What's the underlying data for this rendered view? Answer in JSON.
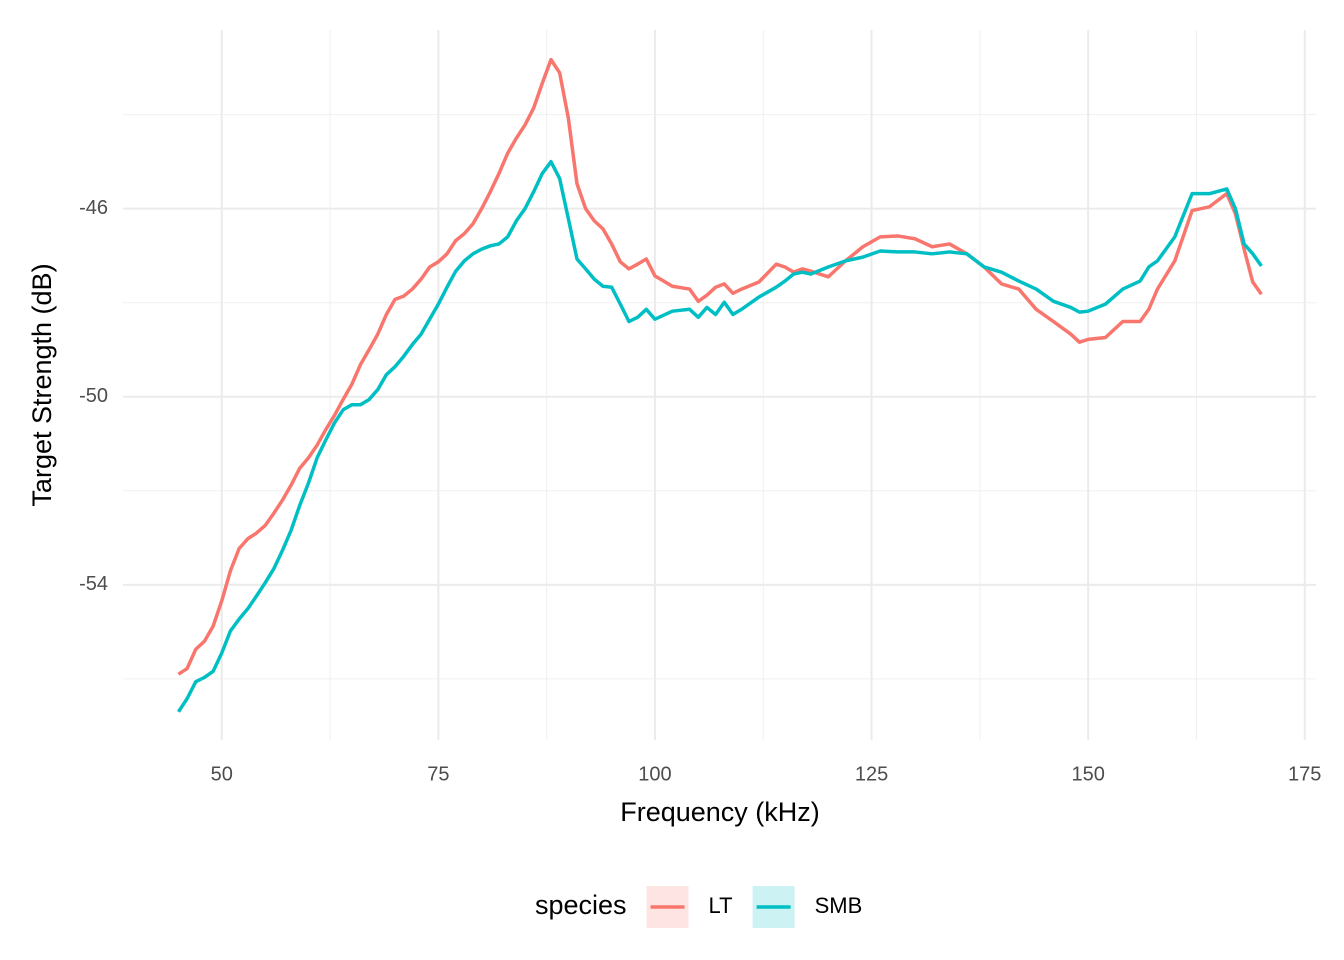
{
  "chart_data": {
    "type": "line",
    "x_label": "Frequency (kHz)",
    "y_label": "Target Strength (dB)",
    "x": [
      45,
      46,
      47,
      48,
      49,
      50,
      51,
      52,
      53,
      54,
      55,
      56,
      57,
      58,
      59,
      60,
      61,
      62,
      63,
      64,
      65,
      66,
      67,
      68,
      69,
      70,
      71,
      72,
      73,
      74,
      75,
      76,
      77,
      78,
      79,
      80,
      81,
      82,
      83,
      84,
      85,
      86,
      87,
      88,
      89,
      90,
      91,
      92,
      93,
      94,
      95,
      96,
      97,
      98,
      99,
      100,
      102,
      104,
      105,
      106,
      107,
      108,
      109,
      110,
      112,
      114,
      115,
      116,
      117,
      118,
      120,
      122,
      124,
      126,
      128,
      130,
      132,
      134,
      136,
      138,
      140,
      142,
      144,
      146,
      148,
      149,
      150,
      152,
      154,
      156,
      157,
      158,
      160,
      162,
      164,
      166,
      167,
      168,
      169,
      170
    ],
    "series": [
      {
        "name": "LT",
        "color": "#F8766D",
        "values": [
          -55.9,
          -55.78,
          -55.37,
          -55.2,
          -54.88,
          -54.34,
          -53.7,
          -53.23,
          -53.02,
          -52.9,
          -52.74,
          -52.48,
          -52.2,
          -51.88,
          -51.52,
          -51.3,
          -51.03,
          -50.7,
          -50.4,
          -50.06,
          -49.74,
          -49.32,
          -49.0,
          -48.67,
          -48.25,
          -47.93,
          -47.86,
          -47.71,
          -47.5,
          -47.24,
          -47.13,
          -46.96,
          -46.68,
          -46.53,
          -46.32,
          -46.0,
          -45.64,
          -45.25,
          -44.82,
          -44.5,
          -44.22,
          -43.86,
          -43.33,
          -42.83,
          -43.11,
          -44.07,
          -45.47,
          -46.0,
          -46.26,
          -46.43,
          -46.75,
          -47.13,
          -47.28,
          -47.18,
          -47.07,
          -47.43,
          -47.65,
          -47.71,
          -47.97,
          -47.84,
          -47.67,
          -47.6,
          -47.8,
          -47.71,
          -47.56,
          -47.18,
          -47.24,
          -47.35,
          -47.28,
          -47.33,
          -47.45,
          -47.11,
          -46.81,
          -46.6,
          -46.58,
          -46.64,
          -46.81,
          -46.75,
          -46.96,
          -47.24,
          -47.6,
          -47.71,
          -48.14,
          -48.4,
          -48.67,
          -48.84,
          -48.78,
          -48.74,
          -48.4,
          -48.4,
          -48.14,
          -47.71,
          -47.11,
          -46.04,
          -45.96,
          -45.68,
          -46.11,
          -46.86,
          -47.56,
          -47.82
        ]
      },
      {
        "name": "SMB",
        "color": "#00BFC4",
        "values": [
          -56.7,
          -56.42,
          -56.06,
          -55.97,
          -55.84,
          -55.45,
          -54.98,
          -54.73,
          -54.51,
          -54.24,
          -53.96,
          -53.66,
          -53.27,
          -52.84,
          -52.31,
          -51.84,
          -51.3,
          -50.92,
          -50.56,
          -50.28,
          -50.17,
          -50.17,
          -50.06,
          -49.85,
          -49.53,
          -49.36,
          -49.14,
          -48.89,
          -48.67,
          -48.35,
          -48.03,
          -47.67,
          -47.33,
          -47.11,
          -46.96,
          -46.86,
          -46.79,
          -46.75,
          -46.6,
          -46.26,
          -46.0,
          -45.64,
          -45.25,
          -45.0,
          -45.36,
          -46.21,
          -47.07,
          -47.28,
          -47.5,
          -47.65,
          -47.67,
          -48.03,
          -48.4,
          -48.31,
          -48.14,
          -48.35,
          -48.18,
          -48.14,
          -48.31,
          -48.1,
          -48.25,
          -47.99,
          -48.25,
          -48.14,
          -47.88,
          -47.67,
          -47.54,
          -47.39,
          -47.35,
          -47.39,
          -47.24,
          -47.11,
          -47.03,
          -46.9,
          -46.92,
          -46.92,
          -46.96,
          -46.92,
          -46.96,
          -47.24,
          -47.35,
          -47.54,
          -47.71,
          -47.97,
          -48.1,
          -48.2,
          -48.18,
          -48.03,
          -47.71,
          -47.54,
          -47.24,
          -47.11,
          -46.6,
          -45.68,
          -45.68,
          -45.58,
          -46.0,
          -46.75,
          -46.96,
          -47.22
        ]
      }
    ],
    "xlim": [
      38.6,
      176.3
    ],
    "xticks": [
      50,
      75,
      100,
      125,
      150,
      175
    ],
    "x_minor_ticks": [
      62.5,
      87.5,
      112.5,
      137.5,
      162.5
    ],
    "ylim": [
      -57.3,
      -42.2
    ],
    "yticks": [
      -46,
      -50,
      -54
    ],
    "y_minor_ticks": [
      -44,
      -48,
      -52,
      -56
    ],
    "grid": true,
    "legend_title": "species",
    "legend_position": "bottom"
  }
}
